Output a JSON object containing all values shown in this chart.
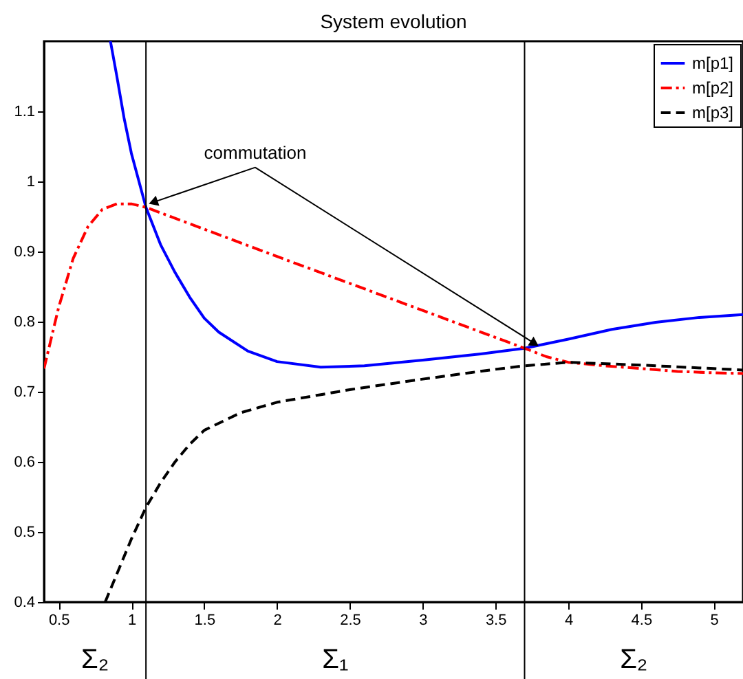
{
  "chart_data": {
    "type": "line",
    "title": "System evolution",
    "xlim": [
      0.4,
      5.2
    ],
    "xticks": [
      0.5,
      1,
      1.5,
      2,
      2.5,
      3,
      3.5,
      4,
      4.5,
      5
    ],
    "ylim": [
      0.4,
      1.2
    ],
    "yticks": [
      0.4,
      0.5,
      0.6,
      0.7,
      0.8,
      0.9,
      1,
      1.1
    ],
    "series": [
      {
        "name": "m[p1]",
        "color": "#0000ff",
        "line_style": "solid",
        "x": [
          0.856,
          0.9,
          0.95,
          1.0,
          1.1,
          1.2,
          1.3,
          1.4,
          1.5,
          1.6,
          1.8,
          2.0,
          2.3,
          2.6,
          3.0,
          3.4,
          3.7,
          4.0,
          4.3,
          4.6,
          4.9,
          5.2
        ],
        "values": [
          1.2,
          1.15,
          1.09,
          1.04,
          0.963,
          0.91,
          0.87,
          0.835,
          0.805,
          0.785,
          0.758,
          0.743,
          0.735,
          0.737,
          0.745,
          0.754,
          0.762,
          0.775,
          0.789,
          0.799,
          0.806,
          0.81
        ]
      },
      {
        "name": "m[p2]",
        "color": "#ff0000",
        "line_style": "dashdot",
        "x": [
          0.4,
          0.5,
          0.6,
          0.7,
          0.8,
          0.9,
          1.0,
          1.1,
          2.0,
          3.0,
          3.7,
          3.85,
          4.0,
          4.25,
          4.5,
          4.75,
          5.0,
          5.2
        ],
        "values": [
          0.733,
          0.82,
          0.89,
          0.935,
          0.96,
          0.968,
          0.968,
          0.963,
          0.893,
          0.816,
          0.762,
          0.75,
          0.742,
          0.737,
          0.733,
          0.729,
          0.727,
          0.726
        ]
      },
      {
        "name": "m[p3]",
        "color": "#000000",
        "line_style": "dashed",
        "x": [
          0.82,
          0.9,
          1.0,
          1.1,
          1.2,
          1.3,
          1.4,
          1.5,
          1.75,
          2.0,
          2.5,
          3.0,
          3.5,
          3.7,
          4.0,
          4.5,
          5.0,
          5.2
        ],
        "values": [
          0.4,
          0.44,
          0.49,
          0.535,
          0.57,
          0.6,
          0.625,
          0.645,
          0.67,
          0.685,
          0.703,
          0.718,
          0.732,
          0.737,
          0.742,
          0.738,
          0.733,
          0.731
        ]
      }
    ],
    "ref_lines": [
      {
        "axis": "x",
        "value": 1.1,
        "color": "#000000"
      },
      {
        "axis": "x",
        "value": 3.7,
        "color": "#000000"
      }
    ],
    "annotations": [
      {
        "text": "commutation",
        "x": 1.1,
        "y": 0.963
      },
      "Σ₂",
      "Σ₁",
      "Σ₂"
    ],
    "legend": "top right",
    "grid": false
  }
}
